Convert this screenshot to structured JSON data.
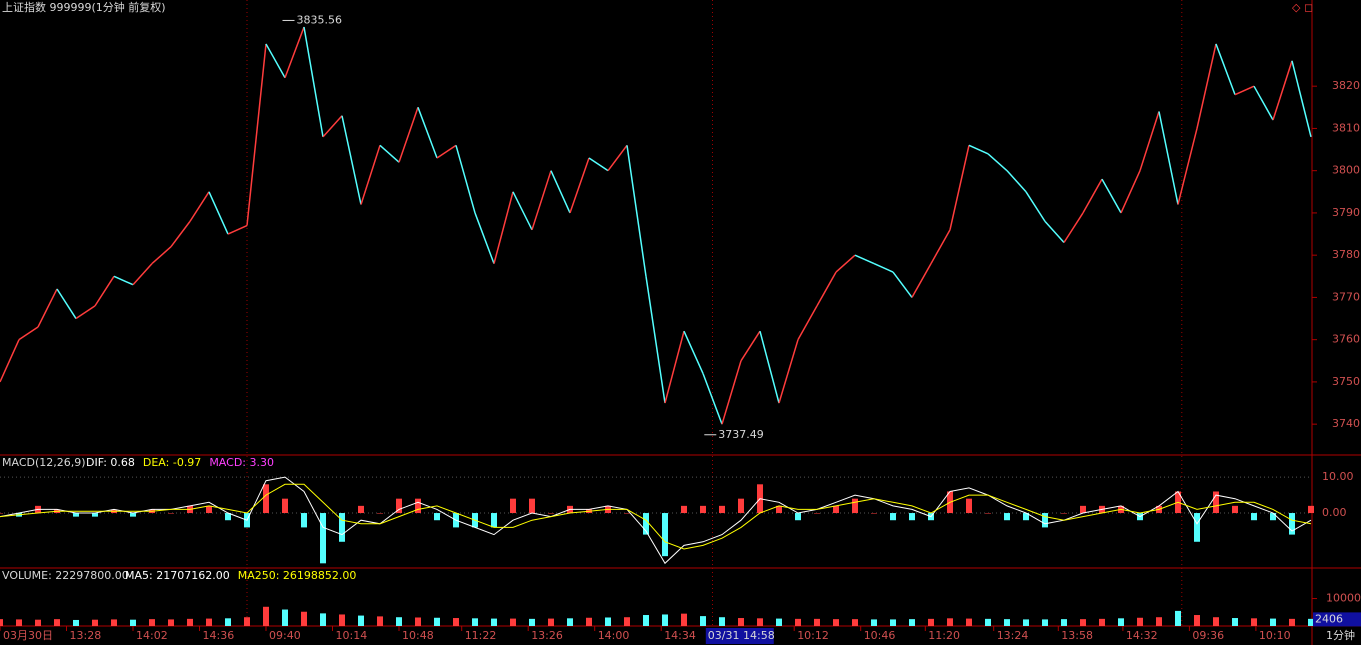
{
  "chart_data": {
    "type": "stock",
    "title": "上证指数 999999(1分钟 前复权)",
    "period": "1分钟",
    "xlim": [
      0,
      69
    ],
    "xticks": [
      {
        "value": 0,
        "label": "03月30日"
      },
      {
        "value": 3.5,
        "label": "13:28"
      },
      {
        "value": 7,
        "label": "14:02"
      },
      {
        "value": 10.5,
        "label": "14:36"
      },
      {
        "value": 14,
        "label": "09:40"
      },
      {
        "value": 17.5,
        "label": "10:14"
      },
      {
        "value": 21,
        "label": "10:48"
      },
      {
        "value": 24.3,
        "label": "11:22"
      },
      {
        "value": 27.8,
        "label": "13:26"
      },
      {
        "value": 31.3,
        "label": "14:00"
      },
      {
        "value": 34.8,
        "label": "14:34"
      },
      {
        "value": 41.8,
        "label": "10:12"
      },
      {
        "value": 45.3,
        "label": "10:46"
      },
      {
        "value": 48.7,
        "label": "11:20"
      },
      {
        "value": 52.3,
        "label": "13:24"
      },
      {
        "value": 55.7,
        "label": "13:58"
      },
      {
        "value": 59.1,
        "label": "14:32"
      },
      {
        "value": 62.6,
        "label": "09:36"
      },
      {
        "value": 66.1,
        "label": "10:10"
      }
    ],
    "cursor_x": {
      "value": 37.2,
      "label": "03/31 14:58"
    },
    "separators": [
      13,
      37.5,
      62.2
    ],
    "price": {
      "ylim": [
        3732.7,
        3840.4
      ],
      "yticks": [
        3740,
        3750,
        3760,
        3770,
        3780,
        3790,
        3800,
        3810,
        3820
      ],
      "up_color": "#ff3c3c",
      "down_color": "#54ffff",
      "values": [
        3750,
        3760,
        3763,
        3772,
        3765,
        3768,
        3775,
        3773,
        3778,
        3782,
        3788,
        3795,
        3785,
        3787,
        3830,
        3822,
        3834,
        3808,
        3813,
        3792,
        3806,
        3802,
        3815,
        3803,
        3806,
        3790,
        3778,
        3795,
        3786,
        3800,
        3790,
        3803,
        3800,
        3806,
        3775,
        3745,
        3762,
        3752,
        3740,
        3755,
        3762,
        3745,
        3760,
        3768,
        3776,
        3780,
        3778,
        3776,
        3770,
        3778,
        3786,
        3806,
        3804,
        3800,
        3795,
        3788,
        3783,
        3790,
        3798,
        3790,
        3800,
        3814,
        3792,
        3810,
        3830,
        3818,
        3820,
        3812,
        3826,
        3808
      ],
      "annotations": [
        {
          "x": 15.5,
          "value": 3835.56,
          "label": "3835.56"
        },
        {
          "x": 37.7,
          "value": 3737.49,
          "label": "3737.49"
        }
      ]
    },
    "macd": {
      "title": "MACD(12,26,9)",
      "ylim": [
        -15.3,
        15.6
      ],
      "yticks": [
        {
          "value": 0,
          "label": "0.00"
        },
        {
          "value": 10,
          "label": "10.00"
        }
      ],
      "series": [
        {
          "name": "DIF: 0.68",
          "color": "#ffffff",
          "values": [
            -1,
            0,
            1,
            1,
            0,
            0,
            1,
            0,
            1,
            1,
            2,
            3,
            0,
            -2,
            9,
            10,
            6,
            -4,
            -6,
            -2,
            -3,
            1,
            3,
            1,
            -2,
            -4,
            -6,
            -2,
            0,
            -1,
            1,
            1,
            2,
            1,
            -5,
            -14,
            -9,
            -8,
            -6,
            -2,
            4,
            3,
            0,
            1,
            3,
            5,
            4,
            2,
            1,
            -1,
            6,
            7,
            5,
            2,
            0,
            -3,
            -2,
            0,
            1,
            2,
            -1,
            2,
            6,
            -3,
            5,
            4,
            2,
            0,
            -5,
            -2
          ]
        },
        {
          "name": "DEA: -0.97",
          "color": "#ffff00",
          "values": [
            -1,
            -0.5,
            0,
            0.5,
            0.5,
            0.5,
            0.5,
            0.5,
            0.5,
            1,
            1,
            2,
            1,
            0,
            5,
            8,
            8,
            3,
            -2,
            -3,
            -3,
            -1,
            1,
            2,
            0,
            -2,
            -4,
            -4,
            -2,
            -1,
            0,
            0.5,
            1,
            1,
            -2,
            -8,
            -10,
            -9,
            -7,
            -4,
            0,
            2,
            1,
            1,
            2,
            3,
            4,
            3,
            2,
            0,
            3,
            5,
            5,
            3,
            1,
            -1,
            -2,
            -1,
            0,
            1,
            0,
            1,
            3,
            1,
            2,
            3,
            3,
            1,
            -2,
            -3
          ]
        },
        {
          "name": "MACD: 3.30",
          "color": "#ff40ff",
          "values": [
            0,
            -1,
            2,
            1,
            -1,
            -1,
            1,
            -1,
            1,
            0,
            2,
            2,
            -2,
            -4,
            8,
            4,
            -4,
            -14,
            -8,
            2,
            0,
            4,
            4,
            -2,
            -4,
            -4,
            -4,
            4,
            4,
            0,
            2,
            1,
            2,
            0,
            -6,
            -12,
            2,
            2,
            2,
            4,
            8,
            2,
            -2,
            0,
            2,
            4,
            0,
            -2,
            -2,
            -2,
            6,
            4,
            0,
            -2,
            -2,
            -4,
            0,
            2,
            2,
            2,
            -2,
            2,
            6,
            -8,
            6,
            2,
            -2,
            -2,
            -6,
            2
          ]
        }
      ]
    },
    "volume": {
      "title": "VOLUME: 22297800.00",
      "ma_labels": [
        {
          "name": "MA5: 21707162.00",
          "color": "#ffffff"
        },
        {
          "name": "MA250: 26198852.00",
          "color": "#ffff00"
        }
      ],
      "ylim": [
        0,
        20400
      ],
      "yticks": [
        10000
      ],
      "cursor_y": {
        "value": 2406,
        "label": "2406"
      },
      "values": [
        2500,
        2400,
        2300,
        2500,
        2200,
        2300,
        2400,
        2300,
        2500,
        2400,
        2600,
        2700,
        2800,
        3200,
        7000,
        6000,
        5200,
        4600,
        4200,
        3800,
        3500,
        3200,
        3100,
        3000,
        2900,
        2800,
        2700,
        2700,
        2600,
        2700,
        2800,
        3000,
        3100,
        3200,
        4000,
        4200,
        4500,
        3600,
        3200,
        2900,
        2800,
        2700,
        2600,
        2600,
        2500,
        2500,
        2400,
        2400,
        2500,
        2600,
        2800,
        2700,
        2600,
        2500,
        2400,
        2400,
        2500,
        2500,
        2600,
        2800,
        3000,
        3200,
        5500,
        4000,
        3200,
        2900,
        2800,
        2700,
        2600,
        2600
      ]
    }
  }
}
